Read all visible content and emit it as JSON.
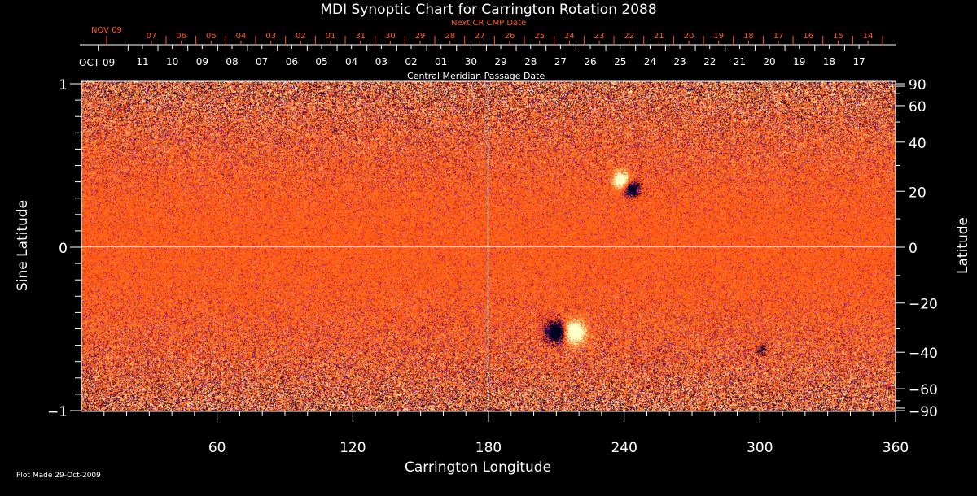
{
  "chart_data": {
    "type": "heatmap",
    "title": "MDI Synoptic Chart for Carrington Rotation 2088",
    "xlabel": "Carrington Longitude",
    "ylabel": "Sine Latitude",
    "y2label": "Latitude",
    "xlim": [
      0,
      360
    ],
    "ylim": [
      -1,
      1
    ],
    "xticks": [
      60,
      120,
      180,
      240,
      300,
      360
    ],
    "yticks": [
      {
        "v": 1,
        "l": "1"
      },
      {
        "v": 0,
        "l": "0"
      },
      {
        "v": -1,
        "l": "−1"
      }
    ],
    "y2ticks": [
      {
        "v": 90,
        "l": "90"
      },
      {
        "v": 60,
        "l": "60"
      },
      {
        "v": 40,
        "l": "40"
      },
      {
        "v": 20,
        "l": "20"
      },
      {
        "v": 0,
        "l": "0"
      },
      {
        "v": -20,
        "l": "−20"
      },
      {
        "v": -40,
        "l": "−40"
      },
      {
        "v": -60,
        "l": "−60"
      },
      {
        "v": -90,
        "l": "−90"
      }
    ],
    "colors": {
      "background_field": "#ff4a10",
      "positive": "#ffffc0",
      "negative": "#000040",
      "grid": "#ffffff",
      "next_cr_dates": "#ff5a1e"
    }
  },
  "top_axis": {
    "cmp_label": "Central Meridian Passage Date",
    "cmp_month": "OCT 09",
    "cmp_dates": [
      "11",
      "10",
      "09",
      "08",
      "07",
      "06",
      "05",
      "04",
      "03",
      "02",
      "01",
      "30",
      "29",
      "28",
      "27",
      "26",
      "25",
      "24",
      "23",
      "22",
      "21",
      "20",
      "19",
      "18",
      "17"
    ],
    "next_label": "Next CR CMP Date",
    "next_month": "NOV 09",
    "next_dates": [
      "07",
      "06",
      "05",
      "04",
      "03",
      "02",
      "01",
      "31",
      "30",
      "29",
      "28",
      "27",
      "26",
      "25",
      "24",
      "23",
      "22",
      "21",
      "20",
      "19",
      "18",
      "17",
      "16",
      "15",
      "14"
    ]
  },
  "footer": "Plot Made 29-Oct-2009"
}
